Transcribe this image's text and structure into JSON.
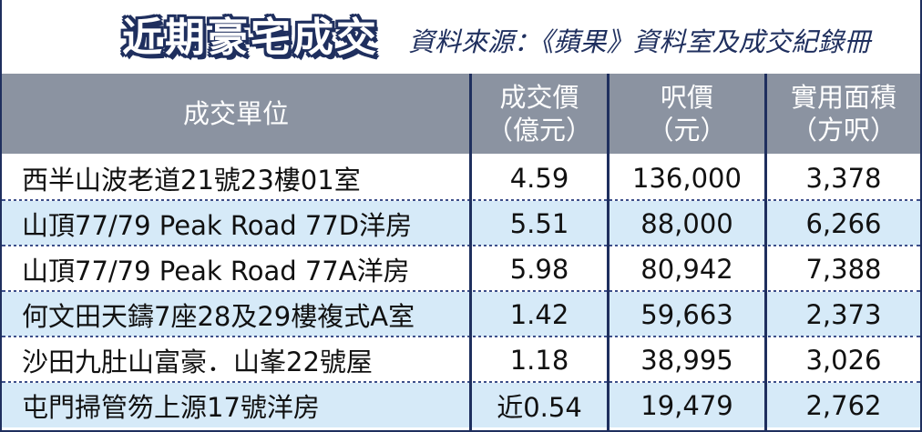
{
  "title": "近期豪宅成交",
  "source": "資料來源：《蘋果》資料室及成交紀錄冊",
  "colors": {
    "navy": "#1f2f5e",
    "header_bg": "#8b93a1",
    "alt_row": "#d6eaf8"
  },
  "columns": [
    {
      "line1": "成交單位",
      "line2": ""
    },
    {
      "line1": "成交價",
      "line2": "（億元）"
    },
    {
      "line1": "呎價",
      "line2": "（元）"
    },
    {
      "line1": "實用面積",
      "line2": "（方呎）"
    }
  ],
  "rows": [
    {
      "unit": "西半山波老道21號23樓01室",
      "price": "4.59",
      "psf": "136,000",
      "area": "3,378"
    },
    {
      "unit": "山頂77/79 Peak Road 77D洋房",
      "price": "5.51",
      "psf": "88,000",
      "area": "6,266"
    },
    {
      "unit": "山頂77/79 Peak Road 77A洋房",
      "price": "5.98",
      "psf": "80,942",
      "area": "7,388"
    },
    {
      "unit": "何文田天鑄7座28及29樓複式A室",
      "price": "1.42",
      "psf": "59,663",
      "area": "2,373"
    },
    {
      "unit": "沙田九肚山富豪．山峯22號屋",
      "price": "1.18",
      "psf": "38,995",
      "area": "3,026"
    },
    {
      "unit": "屯門掃管笏上源17號洋房",
      "price": "近0.54",
      "psf": "19,479",
      "area": "2,762"
    }
  ]
}
